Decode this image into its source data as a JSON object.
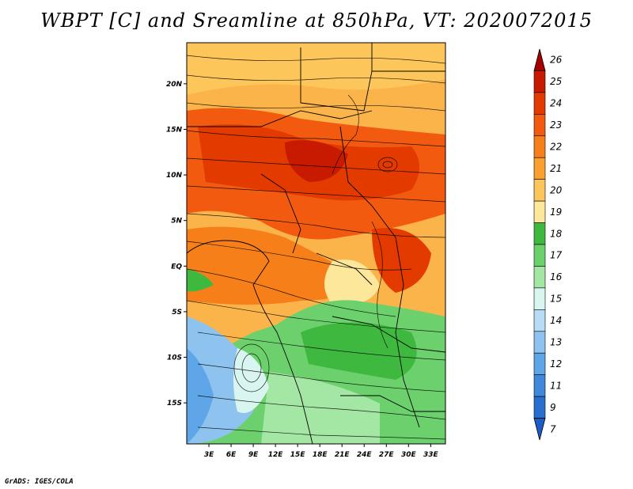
{
  "title": "WBPT [C] and Sreamline at 850hPa, VT: 2020072015",
  "credit": "GrADS: IGES/COLA",
  "map": {
    "lon_labels": [
      "3E",
      "6E",
      "9E",
      "12E",
      "15E",
      "18E",
      "21E",
      "24E",
      "27E",
      "30E",
      "33E"
    ],
    "lon_values": [
      3,
      6,
      9,
      12,
      15,
      18,
      21,
      24,
      27,
      30,
      33
    ],
    "lat_labels": [
      "20N",
      "15N",
      "10N",
      "5N",
      "EQ",
      "5S",
      "10S",
      "15S"
    ],
    "lat_values": [
      20,
      15,
      10,
      5,
      0,
      -5,
      -10,
      -15
    ],
    "lon_range": [
      0,
      35
    ],
    "lat_range": [
      -19.5,
      24.5
    ]
  },
  "colorbar": {
    "levels": [
      "26",
      "25",
      "24",
      "23",
      "22",
      "21",
      "20",
      "19",
      "18",
      "17",
      "16",
      "15",
      "14",
      "13",
      "12",
      "11",
      "9",
      "7"
    ],
    "colors": [
      "#a50000",
      "#c81a00",
      "#e33a00",
      "#f25a10",
      "#f77f1a",
      "#fba030",
      "#fcc65a",
      "#fde79a",
      "#3fb83f",
      "#6cd16c",
      "#a4e6a4",
      "#d9f5f0",
      "#b8dcf5",
      "#8ec3ef",
      "#5fa6e8",
      "#3f88dc",
      "#2a6ed0",
      "#1c5cc4"
    ]
  }
}
